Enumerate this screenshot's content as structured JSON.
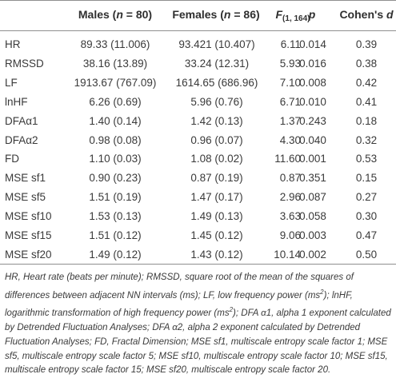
{
  "header": {
    "males_label": "Males (",
    "males_n": "n",
    "males_val": " = 80)",
    "females_label": "Females (",
    "females_n": "n",
    "females_val": " = 86)",
    "f_label": "F",
    "f_sub": "(1, 164)",
    "p_label": "p",
    "d_label": "Cohen's ",
    "d_letter": "d"
  },
  "rows": [
    {
      "label": "HR",
      "males": "89.33 (11.006)",
      "females": "93.421 (10.407)",
      "f": "6.11",
      "p": "0.014",
      "d": "0.39"
    },
    {
      "label": "RMSSD",
      "males": "38.16 (13.89)",
      "females": "33.24 (12.31)",
      "f": "5.93",
      "p": "0.016",
      "d": "0.38"
    },
    {
      "label": "LF",
      "males": "1913.67 (767.09)",
      "females": "1614.65 (686.96)",
      "f": "7.10",
      "p": "0.008",
      "d": "0.42"
    },
    {
      "label": "lnHF",
      "males": "6.26 (0.69)",
      "females": "5.96 (0.76)",
      "f": "6.71",
      "p": "0.010",
      "d": "0.41"
    },
    {
      "label": "DFAα1",
      "males": "1.40 (0.14)",
      "females": "1.42 (0.13)",
      "f": "1.37",
      "p": "0.243",
      "d": "0.18"
    },
    {
      "label": "DFAα2",
      "males": "0.98 (0.08)",
      "females": "0.96 (0.07)",
      "f": "4.30",
      "p": "0.040",
      "d": "0.32"
    },
    {
      "label": "FD",
      "males": "1.10 (0.03)",
      "females": "1.08 (0.02)",
      "f": "11.60",
      "p": "0.001",
      "d": "0.53"
    },
    {
      "label": "MSE sf1",
      "males": "0.90 (0.23)",
      "females": "0.87 (0.19)",
      "f": "0.87",
      "p": "0.351",
      "d": "0.15"
    },
    {
      "label": "MSE sf5",
      "males": "1.51 (0.19)",
      "females": "1.47 (0.17)",
      "f": "2.96",
      "p": "0.087",
      "d": "0.27"
    },
    {
      "label": "MSE sf10",
      "males": "1.53 (0.13)",
      "females": "1.49 (0.13)",
      "f": "3.63",
      "p": "0.058",
      "d": "0.30"
    },
    {
      "label": "MSE sf15",
      "males": "1.51 (0.12)",
      "females": "1.45 (0.12)",
      "f": "9.06",
      "p": "0.003",
      "d": "0.47"
    },
    {
      "label": "MSE sf20",
      "males": "1.49 (0.12)",
      "females": "1.43 (0.12)",
      "f": "10.14",
      "p": "0.002",
      "d": "0.50"
    }
  ],
  "footnote": {
    "part1": "HR, Heart rate (beats per minute); RMSSD, square root of the mean of the squares of differences between adjacent NN intervals (ms); LF, low frequency power (ms",
    "sup1": "2",
    "part2": "); lnHF, logarithmic transformation of high frequency power (ms",
    "sup2": "2",
    "part3": "); DFA α1, alpha 1 exponent calculated by Detrended Fluctuation Analyses; DFA α2, alpha 2 exponent calculated by Detrended Fluctuation Analyses; FD, Fractal Dimension; MSE sf1, multiscale entropy scale factor 1; MSE sf5, multiscale entropy scale factor 5; MSE sf10, multiscale entropy scale factor 10; MSE sf15, multiscale entropy scale factor 15; MSE sf20, multiscale entropy scale factor 20."
  }
}
